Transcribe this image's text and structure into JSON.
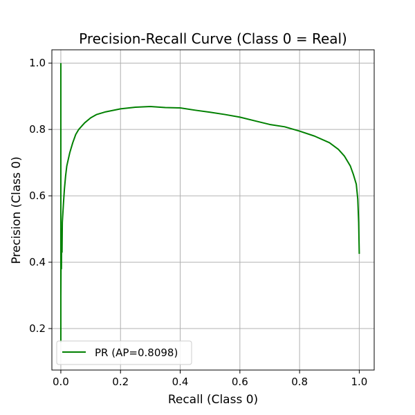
{
  "chart_data": {
    "type": "line",
    "title": "Precision-Recall Curve (Class 0 = Real)",
    "xlabel": "Recall (Class 0)",
    "ylabel": "Precision (Class 0)",
    "xlim": [
      -0.03,
      1.05
    ],
    "ylim": [
      0.075,
      1.04
    ],
    "xticks": [
      0.0,
      0.2,
      0.4,
      0.6,
      0.8,
      1.0
    ],
    "xtick_labels": [
      "0.0",
      "0.2",
      "0.4",
      "0.6",
      "0.8",
      "1.0"
    ],
    "yticks": [
      0.2,
      0.4,
      0.6,
      0.8,
      1.0
    ],
    "ytick_labels": [
      "0.2",
      "0.4",
      "0.6",
      "0.8",
      "1.0"
    ],
    "grid": true,
    "legend_position": "lower-left",
    "series": [
      {
        "name": "PR (AP=0.8098)",
        "color": "#008000",
        "x": [
          0.0,
          0.0,
          0.0,
          0.001,
          0.002,
          0.003,
          0.004,
          0.005,
          0.007,
          0.009,
          0.012,
          0.016,
          0.02,
          0.03,
          0.04,
          0.05,
          0.06,
          0.07,
          0.08,
          0.1,
          0.12,
          0.15,
          0.2,
          0.25,
          0.3,
          0.35,
          0.4,
          0.45,
          0.5,
          0.55,
          0.6,
          0.65,
          0.7,
          0.75,
          0.8,
          0.85,
          0.9,
          0.93,
          0.95,
          0.97,
          0.98,
          0.99,
          0.995,
          0.998,
          1.0
        ],
        "y": [
          1.0,
          0.16,
          0.3,
          0.45,
          0.38,
          0.5,
          0.43,
          0.52,
          0.55,
          0.58,
          0.62,
          0.66,
          0.69,
          0.73,
          0.76,
          0.785,
          0.8,
          0.81,
          0.82,
          0.835,
          0.845,
          0.853,
          0.862,
          0.867,
          0.869,
          0.866,
          0.865,
          0.858,
          0.852,
          0.845,
          0.837,
          0.826,
          0.815,
          0.808,
          0.795,
          0.78,
          0.76,
          0.74,
          0.72,
          0.69,
          0.665,
          0.635,
          0.59,
          0.52,
          0.425
        ]
      }
    ]
  }
}
